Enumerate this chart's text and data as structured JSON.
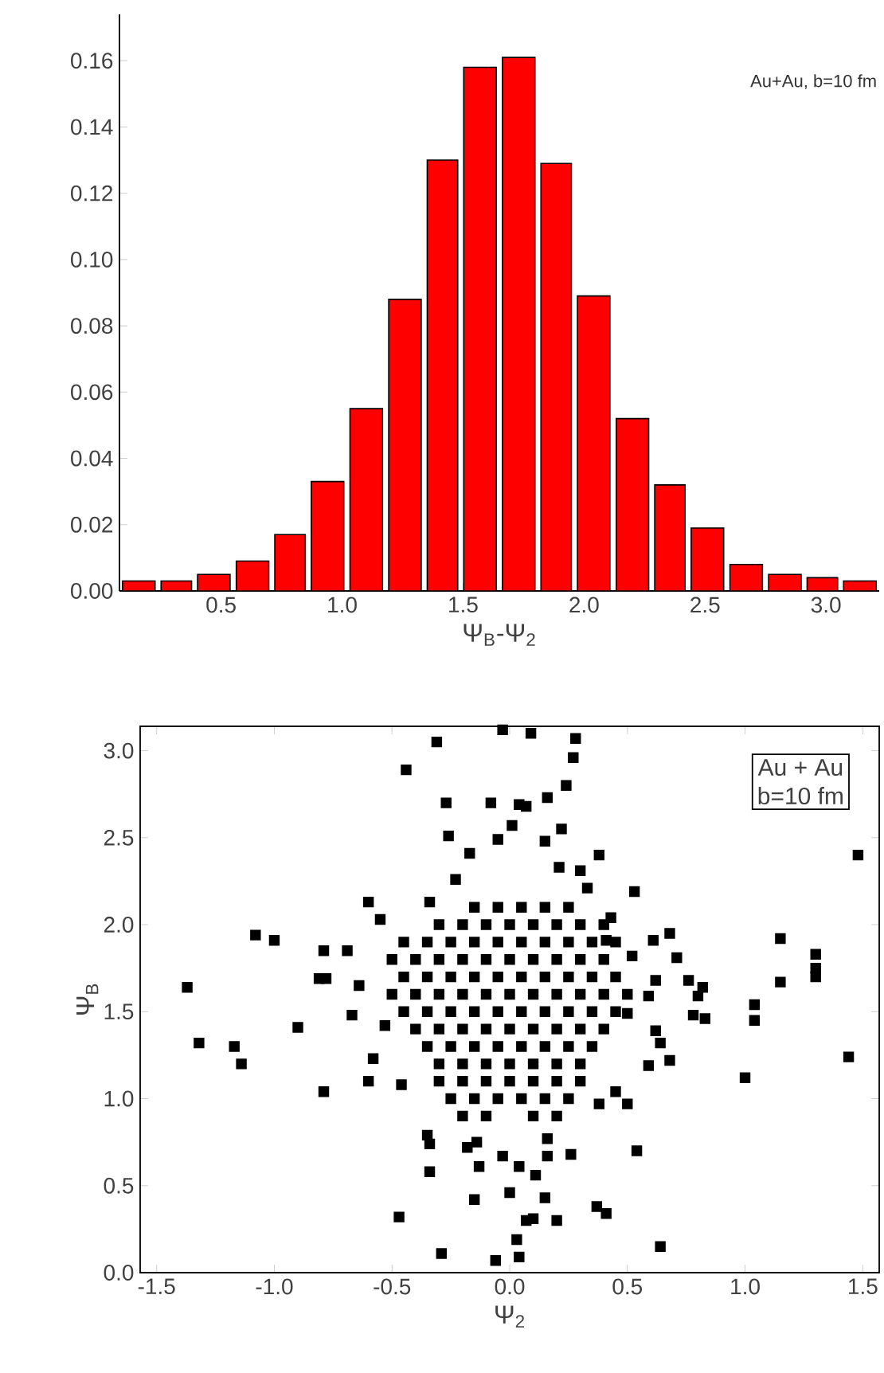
{
  "chart_data": [
    {
      "type": "histogram",
      "xlabel": "Ψ$_{B}$-Ψ$_{2}$",
      "color": "#ff0000",
      "bins": [
        0.08,
        0.24,
        0.39,
        0.55,
        0.71,
        0.86,
        1.02,
        1.18,
        1.34,
        1.49,
        1.65,
        1.81,
        1.96,
        2.12,
        2.28,
        2.43,
        2.59,
        2.75,
        2.91,
        3.06,
        3.22
      ],
      "values": [
        0.003,
        0.003,
        0.005,
        0.009,
        0.017,
        0.033,
        0.055,
        0.088,
        0.13,
        0.158,
        0.161,
        0.129,
        0.089,
        0.052,
        0.032,
        0.019,
        0.008,
        0.005,
        0.004,
        0.003
      ],
      "xlim": [
        0.08,
        3.22
      ],
      "xticks": [
        0.5,
        {
          "value": 1,
          "label": "1.0"
        },
        1.5,
        {
          "value": 2,
          "label": "2.0"
        },
        2.5,
        {
          "value": 3,
          "label": "3.0"
        }
      ],
      "ylim": [
        0,
        0.174
      ],
      "yticks": [
        {
          "value": 0,
          "label": "0.00"
        },
        0.02,
        0.04,
        0.06,
        0.08,
        {
          "value": 0.1,
          "label": "0.10"
        },
        0.12,
        0.14,
        0.16
      ],
      "annotations": [
        "Au+Au, b=10 fm"
      ]
    },
    {
      "type": "scatter",
      "xlabel": "Ψ$_{2}$",
      "ylabel": "Ψ$_{B}$",
      "color": "#000000",
      "marker": "square",
      "x": [
        -1.37,
        -1.32,
        -1.17,
        -1.14,
        -1.08,
        -1.0,
        -0.9,
        -0.79,
        -0.69,
        -0.81,
        -0.78,
        -0.79,
        -0.6,
        -0.55,
        -0.67,
        -0.64,
        -0.53,
        -0.58,
        -0.6,
        -0.46,
        -0.47,
        -0.31,
        -0.44,
        -0.27,
        -0.26,
        -0.23,
        -0.17,
        -0.08,
        -0.03,
        0.09,
        0.28,
        0.27,
        0.24,
        0.16,
        0.04,
        0.07,
        0.01,
        -0.05,
        0.15,
        0.22,
        0.38,
        0.3,
        0.21,
        0.53,
        -0.34,
        -0.34,
        -0.34,
        -0.35,
        -0.29,
        -0.06,
        0.04,
        0.03,
        0.07,
        0.1,
        0.2,
        0.15,
        0.0,
        -0.15,
        -0.13,
        -0.03,
        0.04,
        0.11,
        0.16,
        0.26,
        0.16,
        -0.18,
        -0.14,
        0.37,
        0.41,
        0.54,
        0.64,
        0.38,
        0.45,
        0.5,
        0.59,
        0.68,
        0.62,
        0.64,
        0.59,
        0.62,
        0.61,
        0.68,
        0.71,
        0.76,
        0.82,
        0.8,
        0.78,
        0.83,
        0.5,
        0.52,
        1.0,
        1.04,
        1.04,
        1.15,
        1.15,
        1.3,
        1.3,
        1.3,
        1.44,
        1.48,
        0.43,
        0.41,
        0.33,
        -0.15,
        -0.05,
        0.05,
        0.15,
        0.25,
        -0.3,
        -0.2,
        -0.1,
        0,
        0.1,
        0.2,
        0.3,
        0.4,
        -0.45,
        -0.35,
        -0.25,
        -0.15,
        -0.05,
        0.05,
        0.15,
        0.25,
        0.35,
        0.45,
        -0.5,
        -0.4,
        -0.3,
        -0.2,
        -0.1,
        0,
        0.1,
        0.2,
        0.3,
        0.4,
        -0.45,
        -0.35,
        -0.25,
        -0.15,
        -0.05,
        0.05,
        0.15,
        0.25,
        0.35,
        0.45,
        -0.5,
        -0.4,
        -0.3,
        -0.2,
        -0.1,
        0,
        0.1,
        0.2,
        0.3,
        0.4,
        0.5,
        -0.45,
        -0.35,
        -0.25,
        -0.15,
        -0.05,
        0.05,
        0.15,
        0.25,
        0.35,
        0.45,
        -0.4,
        -0.3,
        -0.2,
        -0.1,
        0,
        0.1,
        0.2,
        0.3,
        0.4,
        -0.35,
        -0.25,
        -0.15,
        -0.05,
        0.05,
        0.15,
        0.25,
        0.35,
        -0.3,
        -0.2,
        -0.1,
        0,
        0.1,
        0.2,
        0.3,
        -0.3,
        -0.2,
        -0.1,
        0,
        0.1,
        0.2,
        0.3,
        -0.25,
        -0.15,
        -0.05,
        0.05,
        0.15,
        0.25,
        -0.2,
        -0.1,
        0.1,
        0.2
      ],
      "values": [
        1.64,
        1.32,
        1.3,
        1.2,
        1.94,
        1.91,
        1.41,
        1.85,
        1.85,
        1.69,
        1.69,
        1.04,
        2.13,
        2.03,
        1.48,
        1.65,
        1.42,
        1.23,
        1.1,
        1.08,
        0.32,
        3.05,
        2.89,
        2.7,
        2.51,
        2.26,
        2.41,
        2.7,
        3.12,
        3.1,
        3.07,
        2.96,
        2.8,
        2.73,
        2.69,
        2.68,
        2.57,
        2.49,
        2.48,
        2.55,
        2.4,
        2.31,
        2.33,
        2.19,
        2.13,
        0.74,
        0.58,
        0.79,
        0.11,
        0.07,
        0.09,
        0.19,
        0.3,
        0.31,
        0.3,
        0.43,
        0.46,
        0.42,
        0.61,
        0.67,
        0.61,
        0.56,
        0.67,
        0.68,
        0.77,
        0.72,
        0.75,
        0.38,
        0.34,
        0.7,
        0.15,
        0.97,
        1.04,
        0.97,
        1.19,
        1.22,
        1.39,
        1.32,
        1.59,
        1.68,
        1.91,
        1.95,
        1.81,
        1.68,
        1.64,
        1.59,
        1.48,
        1.46,
        1.49,
        1.82,
        1.12,
        1.54,
        1.45,
        1.92,
        1.67,
        1.83,
        1.75,
        1.7,
        1.24,
        2.4,
        2.04,
        1.91,
        2.21,
        2.1,
        2.1,
        2.1,
        2.1,
        2.1,
        2.0,
        2.0,
        2.0,
        2.0,
        2.0,
        2.0,
        2.0,
        2.0,
        1.9,
        1.9,
        1.9,
        1.9,
        1.9,
        1.9,
        1.9,
        1.9,
        1.9,
        1.9,
        1.8,
        1.8,
        1.8,
        1.8,
        1.8,
        1.8,
        1.8,
        1.8,
        1.8,
        1.8,
        1.7,
        1.7,
        1.7,
        1.7,
        1.7,
        1.7,
        1.7,
        1.7,
        1.7,
        1.7,
        1.6,
        1.6,
        1.6,
        1.6,
        1.6,
        1.6,
        1.6,
        1.6,
        1.6,
        1.6,
        1.6,
        1.5,
        1.5,
        1.5,
        1.5,
        1.5,
        1.5,
        1.5,
        1.5,
        1.5,
        1.5,
        1.4,
        1.4,
        1.4,
        1.4,
        1.4,
        1.4,
        1.4,
        1.4,
        1.4,
        1.3,
        1.3,
        1.3,
        1.3,
        1.3,
        1.3,
        1.3,
        1.3,
        1.2,
        1.2,
        1.2,
        1.2,
        1.2,
        1.2,
        1.2,
        1.1,
        1.1,
        1.1,
        1.1,
        1.1,
        1.1,
        1.1,
        1.0,
        1.0,
        1.0,
        1.0,
        1.0,
        1.0,
        0.9,
        0.9,
        0.9,
        0.9
      ],
      "xlim": [
        -1.57,
        1.57
      ],
      "xticks": [
        -1.5,
        {
          "value": -1,
          "label": "-1.0"
        },
        -0.5,
        {
          "value": 0,
          "label": "0.0"
        },
        0.5,
        {
          "value": 1,
          "label": "1.0"
        },
        1.5
      ],
      "ylim": [
        0,
        3.14
      ],
      "yticks": [
        {
          "value": 0,
          "label": "0.0"
        },
        0.5,
        {
          "value": 1,
          "label": "1.0"
        },
        1.5,
        {
          "value": 2,
          "label": "2.0"
        },
        2.5,
        {
          "value": 3,
          "label": "3.0"
        }
      ],
      "annotations": [
        "Au + Au",
        "b=10 fm"
      ]
    }
  ]
}
